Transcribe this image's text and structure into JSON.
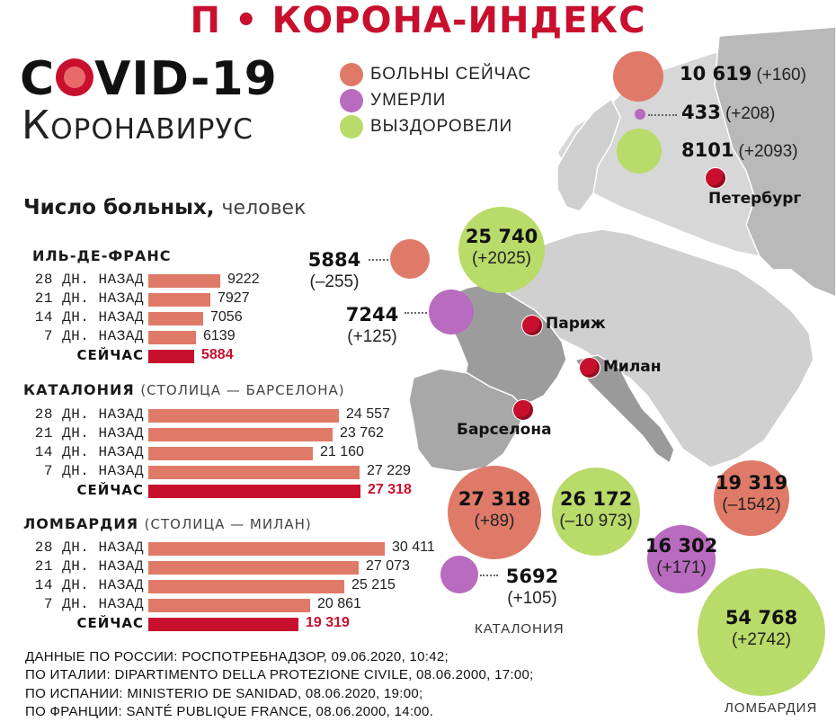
{
  "header": {
    "title": "П • КОРОНА-ИНДЕКС"
  },
  "brand": {
    "title": "COVID-19",
    "subtitle": "Коронавирус"
  },
  "legend": [
    {
      "label": "БОЛЬНЫ СЕЙЧАС",
      "color": "#e07a68"
    },
    {
      "label": "УМЕРЛИ",
      "color": "#b96bbf"
    },
    {
      "label": "ВЫЗДОРОВЕЛИ",
      "color": "#b9db6a"
    }
  ],
  "section": {
    "title": "Число больных,",
    "unit": "человек"
  },
  "chart_data": {
    "type": "bar",
    "title": "Число больных, человек",
    "categories": [
      "28 ДН. НАЗАД",
      "21 ДН. НАЗАД",
      "14 ДН. НАЗАД",
      "7 ДН. НАЗАД",
      "СЕЙЧАС"
    ],
    "series": [
      {
        "name": "ИЛЬ-ДЕ-ФРАНС",
        "caption": "",
        "values": [
          9222,
          7927,
          7056,
          6139,
          5884
        ],
        "labels": [
          "9222",
          "7927",
          "7056",
          "6139",
          "5884"
        ]
      },
      {
        "name": "КАТАЛОНИЯ",
        "caption": "(СТОЛИЦА — БАРСЕЛОНА)",
        "values": [
          24557,
          23762,
          21160,
          27229,
          27318
        ],
        "labels": [
          "24 557",
          "23 762",
          "21 160",
          "27 229",
          "27 318"
        ]
      },
      {
        "name": "ЛОМБАРДИЯ",
        "caption": "(СТОЛИЦА — МИЛАН)",
        "values": [
          30411,
          27073,
          25215,
          20861,
          19319
        ],
        "labels": [
          "30 411",
          "27 073",
          "25 215",
          "20 861",
          "19 319"
        ]
      }
    ],
    "ylim": [
      0,
      30411
    ],
    "colors": {
      "past": "#e07a68",
      "now": "#c8102e"
    }
  },
  "bubbles": {
    "russia": [
      {
        "kind": "sick",
        "number": "10 619",
        "delta": "(+160)",
        "value": 10619
      },
      {
        "kind": "dead",
        "number": "433",
        "delta": "(+208)",
        "value": 433
      },
      {
        "kind": "recovered",
        "number": "8101",
        "delta": "(+2093)",
        "value": 8101
      }
    ],
    "france": [
      {
        "kind": "sick",
        "number": "5884",
        "delta": "(–255)",
        "value": 5884
      },
      {
        "kind": "recovered",
        "number": "25 740",
        "delta": "(+2025)",
        "value": 25740
      },
      {
        "kind": "dead",
        "number": "7244",
        "delta": "(+125)",
        "value": 7244
      }
    ],
    "catalonia": {
      "caption": "КАТАЛОНИЯ",
      "items": [
        {
          "kind": "sick",
          "number": "27 318",
          "delta": "(+89)",
          "value": 27318
        },
        {
          "kind": "recovered",
          "number": "26 172",
          "delta": "(–10 973)",
          "value": 26172
        },
        {
          "kind": "dead",
          "number": "5692",
          "delta": "(+105)",
          "value": 5692
        }
      ]
    },
    "lombardy": {
      "caption": "ЛОМБАРДИЯ",
      "items": [
        {
          "kind": "sick",
          "number": "19 319",
          "delta": "(–1542)",
          "value": 19319
        },
        {
          "kind": "dead",
          "number": "16 302",
          "delta": "(+171)",
          "value": 16302
        },
        {
          "kind": "recovered",
          "number": "54 768",
          "delta": "(+2742)",
          "value": 54768
        }
      ]
    }
  },
  "cities": [
    "Петербург",
    "Париж",
    "Милан",
    "Барселона"
  ],
  "sources": [
    "ДАННЫЕ ПО РОССИИ: РОСПОТРЕБНАДЗОР, 09.06.2020, 10:42;",
    "ПО ИТАЛИИ: DIPARTIMENTO DELLA PROTEZIONE CIVILE, 08.06.2000, 17:00;",
    "ПО ИСПАНИИ: MINISTERIO DE SANIDAD, 08.06.2020, 19:00;",
    "ПО ФРАНЦИИ: SANTÉ PUBLIQUE FRANCE, 08.06.2000, 14:00."
  ]
}
